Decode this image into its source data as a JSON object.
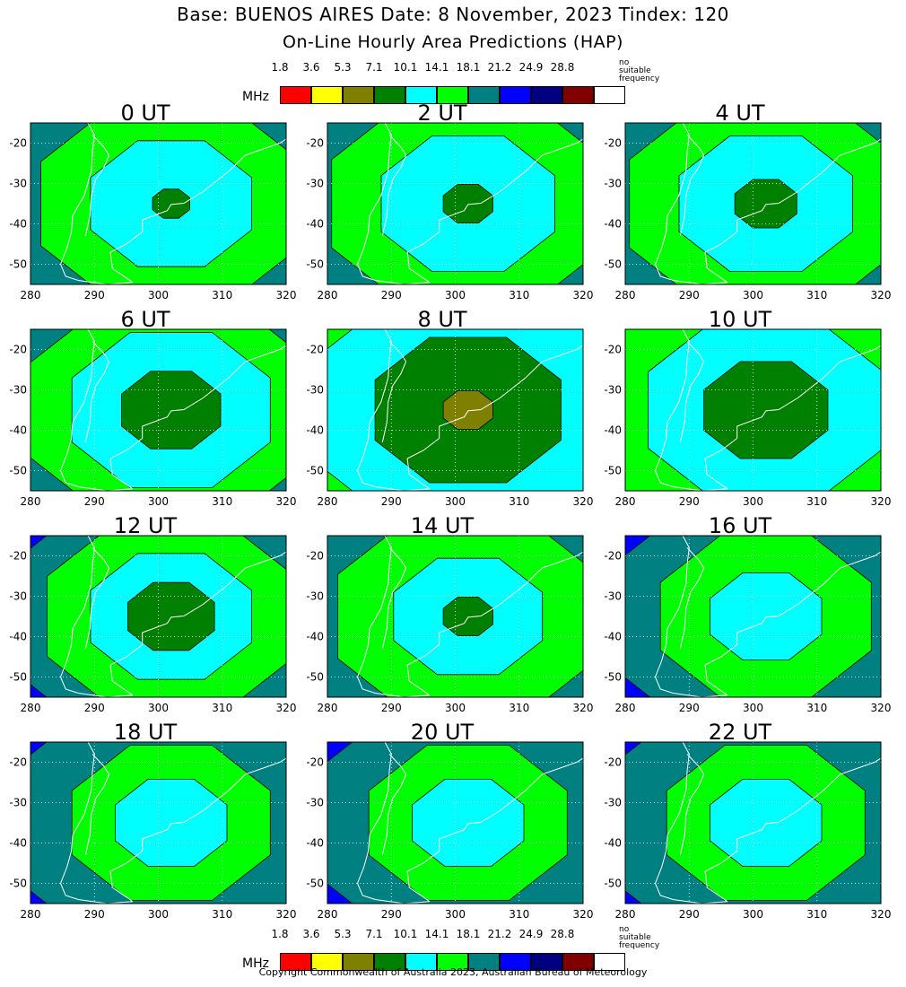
{
  "header": {
    "title": "Base: BUENOS AIRES Date: 8 November, 2023 Tindex: 120",
    "subtitle": "On-Line Hourly Area Predictions (HAP)"
  },
  "legend": {
    "unit": "MHz",
    "no_suitable": "no suitable frequency",
    "bins": [
      {
        "label": "1.8",
        "color": "#ff0000"
      },
      {
        "label": "3.6",
        "color": "#ffff00"
      },
      {
        "label": "5.3",
        "color": "#808000"
      },
      {
        "label": "7.1",
        "color": "#008000"
      },
      {
        "label": "10.1",
        "color": "#00ffff"
      },
      {
        "label": "14.1",
        "color": "#00ff00"
      },
      {
        "label": "18.1",
        "color": "#008080"
      },
      {
        "label": "21.2",
        "color": "#0000ff"
      },
      {
        "label": "24.9",
        "color": "#000080"
      },
      {
        "label": "28.8",
        "color": "#800000"
      },
      {
        "label": "",
        "color": "#ffffff"
      }
    ]
  },
  "footer": {
    "copyright": "Copyright Commonwealth of Australia 2023, Australian Bureau of Meteorology"
  },
  "chart_data": {
    "type": "heatmap",
    "xlim": [
      280,
      320
    ],
    "ylim": [
      -55,
      -15
    ],
    "x_ticks": [
      "280",
      "290",
      "300",
      "310",
      "320"
    ],
    "y_ticks": [
      "-20",
      "-30",
      "-40",
      "-50"
    ],
    "grid": true,
    "center": [
      302,
      -35
    ],
    "panels": [
      {
        "label": "0 UT",
        "bins": [
          {
            "c": "#000080",
            "r": 60
          },
          {
            "c": "#0000ff",
            "r": 40
          },
          {
            "c": "#008080",
            "r": 30
          },
          {
            "c": "#00ff00",
            "r": 21
          },
          {
            "c": "#00ffff",
            "r": 13
          },
          {
            "c": "#008000",
            "r": 3
          }
        ]
      },
      {
        "label": "2 UT",
        "bins": [
          {
            "c": "#000080",
            "r": 60
          },
          {
            "c": "#0000ff",
            "r": 39
          },
          {
            "c": "#008080",
            "r": 30
          },
          {
            "c": "#00ff00",
            "r": 22
          },
          {
            "c": "#00ffff",
            "r": 14
          },
          {
            "c": "#008000",
            "r": 4
          }
        ]
      },
      {
        "label": "4 UT",
        "bins": [
          {
            "c": "#000080",
            "r": 60
          },
          {
            "c": "#0000ff",
            "r": 36
          },
          {
            "c": "#008080",
            "r": 28
          },
          {
            "c": "#00ff00",
            "r": 22
          },
          {
            "c": "#00ffff",
            "r": 14
          },
          {
            "c": "#008000",
            "r": 5
          }
        ]
      },
      {
        "label": "6 UT",
        "bins": [
          {
            "c": "#000080",
            "r": 60
          },
          {
            "c": "#0000ff",
            "r": 38
          },
          {
            "c": "#008080",
            "r": 29
          },
          {
            "c": "#00ff00",
            "r": 23
          },
          {
            "c": "#00ffff",
            "r": 16
          },
          {
            "c": "#008000",
            "r": 8
          }
        ]
      },
      {
        "label": "8 UT",
        "bins": [
          {
            "c": "#008080",
            "r": 60
          },
          {
            "c": "#00ff00",
            "r": 40
          },
          {
            "c": "#00ffff",
            "r": 25
          },
          {
            "c": "#008000",
            "r": 15
          },
          {
            "c": "#808000",
            "r": 4
          }
        ]
      },
      {
        "label": "10 UT",
        "bins": [
          {
            "c": "#008080",
            "r": 60
          },
          {
            "c": "#00ff00",
            "r": 30
          },
          {
            "c": "#00ffff",
            "r": 19
          },
          {
            "c": "#008000",
            "r": 10
          }
        ]
      },
      {
        "label": "12 UT",
        "bins": [
          {
            "c": "#000080",
            "r": 60
          },
          {
            "c": "#0000ff",
            "r": 33
          },
          {
            "c": "#008080",
            "r": 26
          },
          {
            "c": "#00ff00",
            "r": 20
          },
          {
            "c": "#00ffff",
            "r": 13
          },
          {
            "c": "#008000",
            "r": 7
          }
        ]
      },
      {
        "label": "14 UT",
        "bins": [
          {
            "c": "#000080",
            "r": 60
          },
          {
            "c": "#0000ff",
            "r": 38
          },
          {
            "c": "#008080",
            "r": 29
          },
          {
            "c": "#00ff00",
            "r": 21
          },
          {
            "c": "#00ffff",
            "r": 12
          },
          {
            "c": "#008000",
            "r": 4
          }
        ]
      },
      {
        "label": "16 UT",
        "bins": [
          {
            "c": "#000080",
            "r": 60
          },
          {
            "c": "#0000ff",
            "r": 35
          },
          {
            "c": "#008080",
            "r": 25
          },
          {
            "c": "#00ff00",
            "r": 17
          },
          {
            "c": "#00ffff",
            "r": 9
          }
        ]
      },
      {
        "label": "18 UT",
        "bins": [
          {
            "c": "#000080",
            "r": 60
          },
          {
            "c": "#0000ff",
            "r": 34
          },
          {
            "c": "#008080",
            "r": 26
          },
          {
            "c": "#00ff00",
            "r": 16
          },
          {
            "c": "#00ffff",
            "r": 9
          }
        ]
      },
      {
        "label": "20 UT",
        "bins": [
          {
            "c": "#000080",
            "r": 60
          },
          {
            "c": "#0000ff",
            "r": 34
          },
          {
            "c": "#008080",
            "r": 25
          },
          {
            "c": "#00ff00",
            "r": 16
          },
          {
            "c": "#00ffff",
            "r": 9
          }
        ]
      },
      {
        "label": "22 UT",
        "bins": [
          {
            "c": "#000080",
            "r": 60
          },
          {
            "c": "#0000ff",
            "r": 35
          },
          {
            "c": "#008080",
            "r": 26
          },
          {
            "c": "#00ff00",
            "r": 16
          },
          {
            "c": "#00ffff",
            "r": 9
          }
        ]
      }
    ]
  }
}
